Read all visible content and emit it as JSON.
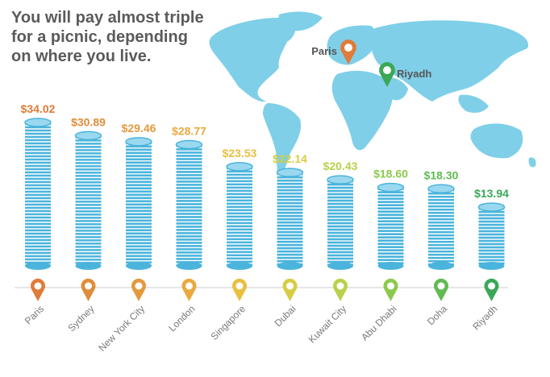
{
  "headline": {
    "lines": [
      "You will pay almost triple",
      "for a picnic, depending",
      "on where you live."
    ]
  },
  "map": {
    "land_color": "#7fcfe8",
    "markers": [
      {
        "label": "Paris",
        "color": "#e07b39"
      },
      {
        "label": "Riyadh",
        "color": "#3aa857"
      }
    ]
  },
  "colors": {
    "coin_face": "#4ab4dc",
    "coin_edge": "#ffffff",
    "coin_top": "#9ad8ef",
    "axis": "#dddddd",
    "label": "#7a7a7a"
  },
  "chart_data": {
    "type": "bar",
    "title": "",
    "categories": [
      "Paris",
      "Sydney",
      "New York City",
      "London",
      "Singapore",
      "Dubai",
      "Kuwait City",
      "Abu Dhabi",
      "Doha",
      "Riyadh"
    ],
    "values": [
      34.02,
      30.89,
      29.46,
      28.77,
      23.53,
      22.14,
      20.43,
      18.6,
      18.3,
      13.94
    ],
    "value_labels": [
      "$34.02",
      "$30.89",
      "$29.46",
      "$28.77",
      "$23.53",
      "$22.14",
      "$20.43",
      "$18.60",
      "$18.30",
      "$13.94"
    ],
    "label_colors": [
      "#e07b39",
      "#e08d39",
      "#e39a3c",
      "#eaa93e",
      "#e9bf3f",
      "#d6cd42",
      "#b6d24a",
      "#8cc94c",
      "#5fbb52",
      "#3aa857"
    ],
    "ylim": [
      0,
      34.02
    ],
    "xlabel": "",
    "ylabel": ""
  }
}
